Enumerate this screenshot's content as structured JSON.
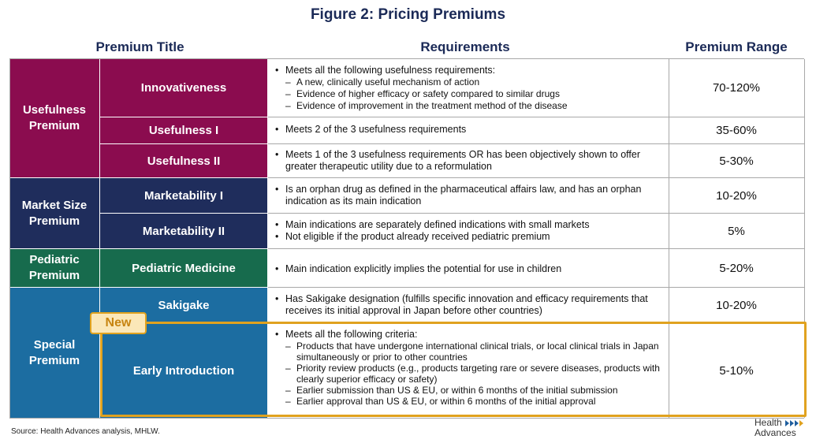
{
  "title": "Figure 2: Pricing Premiums",
  "headers": {
    "premium_title": "Premium Title",
    "requirements": "Requirements",
    "premium_range": "Premium Range"
  },
  "colors": {
    "usefulness": "#8b0c4f",
    "market": "#1f2d5c",
    "pediatric": "#176b4d",
    "special": "#1c6da1",
    "new_accent": "#e0a21f"
  },
  "categories": {
    "usefulness": "Usefulness Premium",
    "market": "Market Size Premium",
    "pediatric": "Pediatric Premium",
    "special": "Special Premium"
  },
  "rows": [
    {
      "title": "Innovativeness",
      "range": "70-120%",
      "req_main": "Meets all the following usefulness requirements:",
      "req_subs": [
        "A new, clinically useful mechanism of action",
        "Evidence of higher efficacy or safety compared to similar drugs",
        "Evidence of improvement in the treatment method of the disease"
      ]
    },
    {
      "title": "Usefulness I",
      "range": "35-60%",
      "req_main": "Meets 2 of the 3 usefulness requirements"
    },
    {
      "title": "Usefulness II",
      "range": "5-30%",
      "req_main": "Meets 1 of the 3 usefulness requirements OR has been objectively shown to offer greater therapeutic utility due to a reformulation"
    },
    {
      "title": "Marketability I",
      "range": "10-20%",
      "req_main": "Is an orphan drug as defined in the pharmaceutical affairs law, and has an orphan indication as its main indication"
    },
    {
      "title": "Marketability II",
      "range": "5%",
      "req_main": "Main indications are separately defined indications with small markets",
      "req_second": "Not eligible if the product already received pediatric premium"
    },
    {
      "title": "Pediatric Medicine",
      "range": "5-20%",
      "req_main": "Main indication explicitly implies the potential for use in children"
    },
    {
      "title": "Sakigake",
      "range": "10-20%",
      "req_main": "Has Sakigake designation (fulfills specific innovation and efficacy requirements that receives its initial approval in Japan before other countries)"
    },
    {
      "title": "Early Introduction",
      "range": "5-10%",
      "req_main": "Meets all the following criteria:",
      "req_subs": [
        "Products that have undergone international clinical trials, or local clinical trials in Japan simultaneously or prior to other countries",
        "Priority review products (e.g., products targeting rare or severe diseases, products with clearly superior efficacy or safety)",
        "Earlier submission than US & EU, or within 6 months of the initial submission",
        "Earlier approval than US & EU, or within 6 months of the initial approval"
      ]
    }
  ],
  "new_label": "New",
  "source": "Source:  Health Advances analysis, MHLW.",
  "logo": {
    "line1": "Health",
    "line2": "Advances"
  }
}
